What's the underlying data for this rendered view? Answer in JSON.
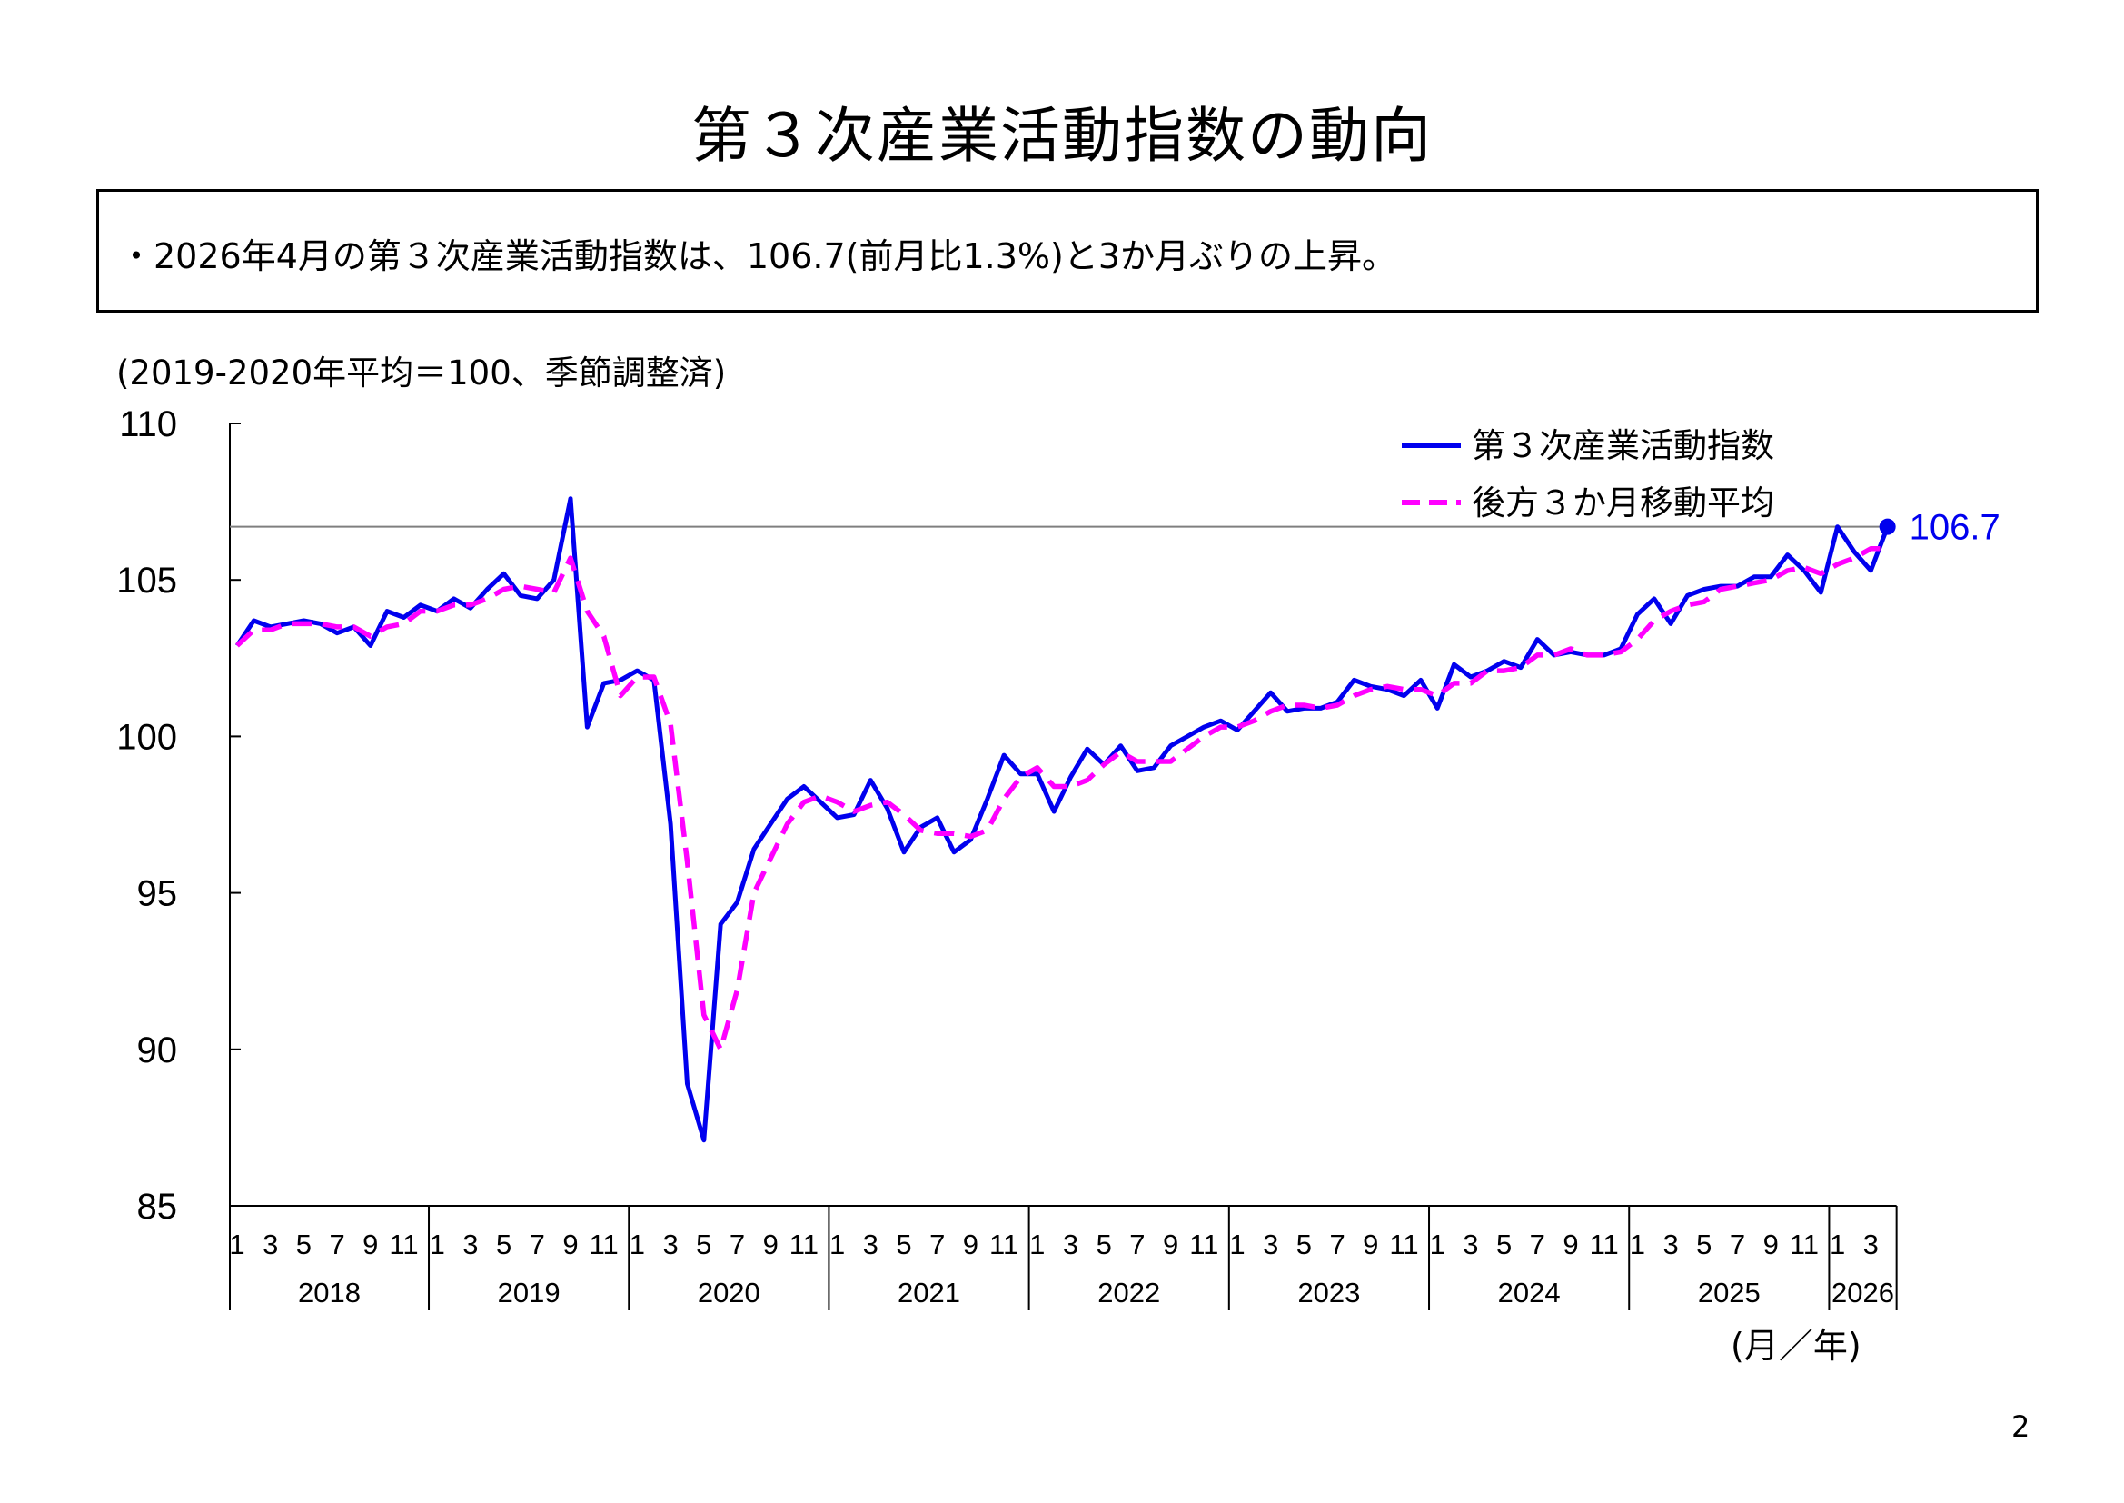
{
  "title": "第３次産業活動指数の動向",
  "summary": "・2026年4月の第３次産業活動指数は、106.7(前月比1.3%)と3か月ぶりの上昇。",
  "note": "(2019-2020年平均＝100、季節調整済)",
  "x_unit_label": "(月／年)",
  "page_number": "2",
  "chart_data": {
    "type": "line",
    "title": "",
    "ylim": [
      85,
      110
    ],
    "y_ticks": [
      "85",
      "90",
      "95",
      "100",
      "105",
      "110"
    ],
    "reference_line": 106.7,
    "last_value_label": "106.7",
    "month_tick_labels": [
      "1",
      "3",
      "5",
      "7",
      "9",
      "11"
    ],
    "years": [
      "2018",
      "2019",
      "2020",
      "2021",
      "2022",
      "2023",
      "2024",
      "2025",
      "2026"
    ],
    "colors": {
      "index": "#0000ee",
      "moving_average": "#ff00ff",
      "reference": "#7f7f7f"
    },
    "legend": {
      "placement": "top-right",
      "entries": [
        "第３次産業活動指数",
        "後方３か月移動平均"
      ]
    },
    "series": [
      {
        "name": "第３次産業活動指数",
        "style": "solid",
        "values": [
          102.9,
          103.7,
          103.5,
          103.6,
          103.7,
          103.6,
          103.3,
          103.5,
          102.9,
          104.0,
          103.8,
          104.2,
          104.0,
          104.4,
          104.1,
          104.7,
          105.2,
          104.5,
          104.4,
          105.0,
          107.6,
          100.3,
          101.7,
          101.8,
          102.1,
          101.8,
          97.2,
          88.9,
          87.1,
          94.0,
          94.7,
          96.4,
          97.2,
          98.0,
          98.4,
          97.9,
          97.4,
          97.5,
          98.6,
          97.7,
          96.3,
          97.1,
          97.4,
          96.3,
          96.7,
          98.0,
          99.4,
          98.8,
          98.8,
          97.6,
          98.7,
          99.6,
          99.1,
          99.7,
          98.9,
          99.0,
          99.7,
          100.0,
          100.3,
          100.5,
          100.2,
          100.8,
          101.4,
          100.8,
          100.9,
          100.9,
          101.1,
          101.8,
          101.6,
          101.5,
          101.3,
          101.8,
          100.9,
          102.3,
          101.9,
          102.1,
          102.4,
          102.2,
          103.1,
          102.6,
          102.7,
          102.6,
          102.6,
          102.8,
          103.9,
          104.4,
          103.6,
          104.5,
          104.7,
          104.8,
          104.8,
          105.1,
          105.1,
          105.8,
          105.3,
          104.6,
          106.7,
          105.9,
          105.3,
          106.7
        ]
      },
      {
        "name": "後方３か月移動平均",
        "style": "dashed",
        "values": [
          102.9,
          103.4,
          103.4,
          103.6,
          103.6,
          103.6,
          103.5,
          103.5,
          103.2,
          103.5,
          103.6,
          104.0,
          104.0,
          104.2,
          104.2,
          104.4,
          104.7,
          104.8,
          104.7,
          104.6,
          105.7,
          104.0,
          103.2,
          101.3,
          101.9,
          101.9,
          100.4,
          96.0,
          91.1,
          90.0,
          91.9,
          95.0,
          96.1,
          97.2,
          97.9,
          98.1,
          97.9,
          97.6,
          97.8,
          97.9,
          97.5,
          97.0,
          96.9,
          96.9,
          96.8,
          97.0,
          98.0,
          98.7,
          99.0,
          98.4,
          98.4,
          98.6,
          99.1,
          99.5,
          99.2,
          99.2,
          99.2,
          99.6,
          100.0,
          100.3,
          100.3,
          100.5,
          100.8,
          101.0,
          101.0,
          100.9,
          101.0,
          101.3,
          101.5,
          101.6,
          101.5,
          101.5,
          101.3,
          101.7,
          101.7,
          102.1,
          102.1,
          102.2,
          102.6,
          102.6,
          102.8,
          102.6,
          102.6,
          102.7,
          103.1,
          103.7,
          104.0,
          104.2,
          104.3,
          104.7,
          104.8,
          104.9,
          105.0,
          105.3,
          105.4,
          105.2,
          105.5,
          105.7,
          106.0,
          106.0
        ]
      }
    ]
  }
}
